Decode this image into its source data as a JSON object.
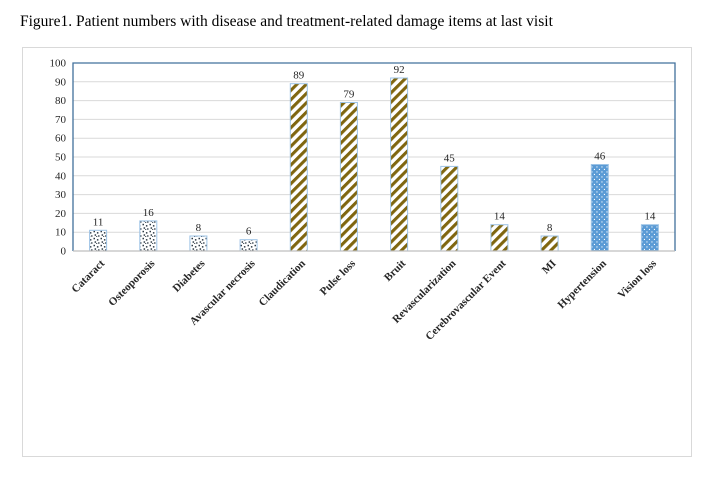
{
  "title": "Figure1. Patient numbers with disease and treatment-related damage items at last visit",
  "chart_data": {
    "type": "bar",
    "categories": [
      "Cataract",
      "Osteoporosis",
      "Diabetes",
      "Avascular necrosis",
      "Claudication",
      "Pulse loss",
      "Bruit",
      "Revascularization",
      "Cerebrovascular Event",
      "MI",
      "Hypertension",
      "Vision loss"
    ],
    "values": [
      11,
      16,
      8,
      6,
      89,
      79,
      92,
      45,
      14,
      8,
      46,
      14
    ],
    "bar_styles": [
      "white_dots",
      "white_dots",
      "white_dots",
      "white_dots",
      "gold_stripes",
      "gold_stripes",
      "gold_stripes",
      "gold_stripes",
      "gold_stripes",
      "gold_stripes",
      "blue_dots",
      "blue_dots"
    ],
    "data_labels": [
      11,
      16,
      8,
      6,
      89,
      79,
      92,
      45,
      14,
      8,
      46,
      14
    ],
    "title": "",
    "xlabel": "",
    "ylabel": "",
    "ylim": [
      0,
      100
    ],
    "yticks": [
      0,
      10,
      20,
      30,
      40,
      50,
      60,
      70,
      80,
      90,
      100
    ],
    "grid": "horizontal",
    "legend": "none",
    "category_label_rotation_deg": 45,
    "data_label_position": "outside-end"
  },
  "colors": {
    "plot_border": "#41719c",
    "gridline": "#d9d9d9",
    "axis_line": "#bfbfbf",
    "bar_outline": "#9dc3e6",
    "stripe": "#7f6610",
    "dot": "#2e3a45",
    "blue_fill": "#5b9bd5",
    "white_fill": "#ffffff",
    "text": "#262626",
    "frame": "#d9d9d9"
  }
}
